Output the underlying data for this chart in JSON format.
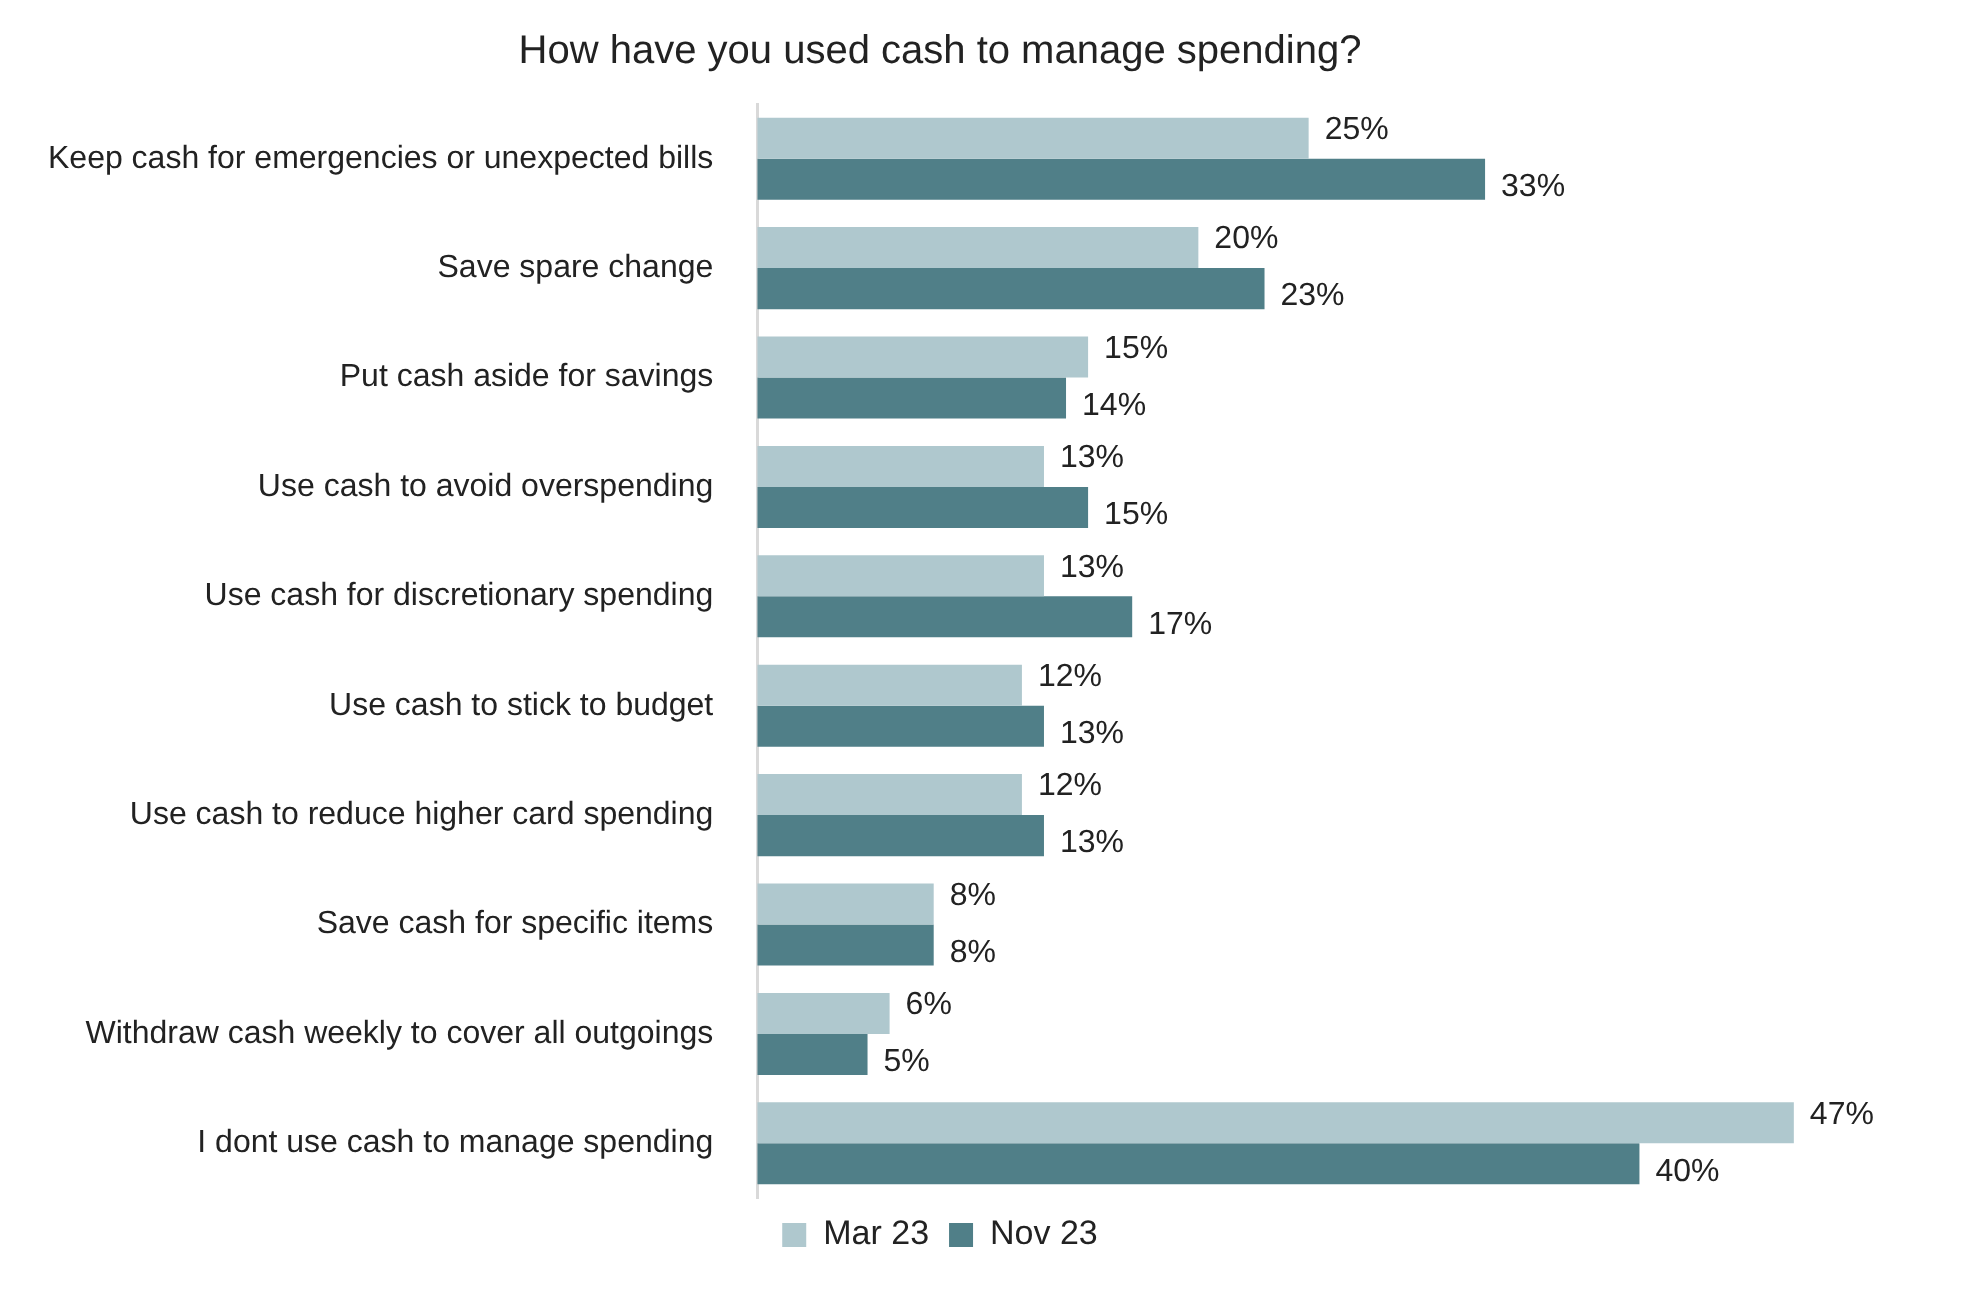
{
  "chart_data": {
    "type": "bar",
    "orientation": "horizontal",
    "title": "How have you used cash to manage spending?",
    "categories": [
      "Keep cash for emergencies or unexpected bills",
      "Save spare change",
      "Put cash aside for savings",
      "Use cash to avoid overspending",
      "Use cash for discretionary spending",
      "Use cash to stick to budget",
      "Use cash to reduce higher card spending",
      "Save cash for specific items",
      "Withdraw cash weekly to cover all outgoings",
      "I dont use cash to manage spending"
    ],
    "series": [
      {
        "name": "Mar 23",
        "color": "#afc8ce",
        "values": [
          25,
          20,
          15,
          13,
          13,
          12,
          12,
          8,
          6,
          47
        ],
        "value_labels": [
          "25%",
          "20%",
          "15%",
          "13%",
          "13%",
          "12%",
          "12%",
          "8%",
          "6%",
          "47%"
        ]
      },
      {
        "name": "Nov 23",
        "color": "#507f88",
        "values": [
          33,
          23,
          14,
          15,
          17,
          13,
          13,
          8,
          5,
          40
        ],
        "value_labels": [
          "33%",
          "23%",
          "14%",
          "15%",
          "17%",
          "13%",
          "13%",
          "8%",
          "5%",
          "40%"
        ]
      }
    ],
    "tick_labels": "y",
    "grid": false,
    "legend": "bottom"
  }
}
